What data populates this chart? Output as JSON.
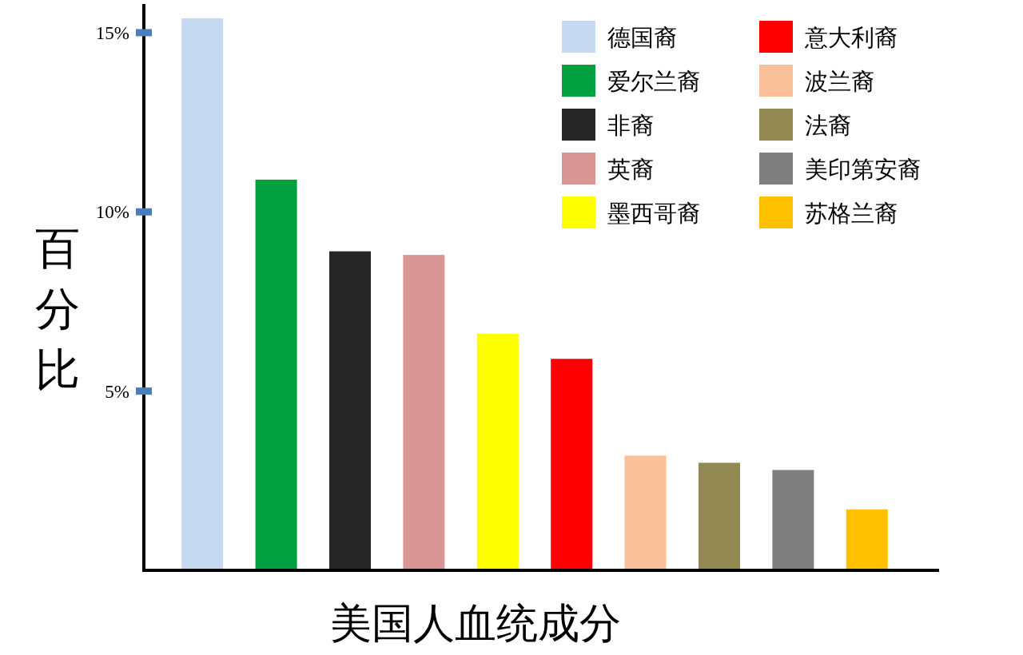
{
  "chart_data": {
    "type": "bar",
    "xlabel": "美国人血统成分",
    "ylabel": "百分比",
    "categories": [
      null,
      null,
      null,
      null,
      null,
      null,
      null,
      null,
      null,
      null
    ],
    "series": [
      {
        "name": "德国裔",
        "color": "#c5d9f0",
        "values": [
          15.4,
          null,
          null,
          null,
          null,
          null,
          null,
          null,
          null,
          null
        ]
      },
      {
        "name": "爱尔兰裔",
        "color": "#00a040",
        "values": [
          null,
          10.9,
          null,
          null,
          null,
          null,
          null,
          null,
          null,
          null
        ]
      },
      {
        "name": "非裔",
        "color": "#262626",
        "values": [
          null,
          null,
          8.9,
          null,
          null,
          null,
          null,
          null,
          null,
          null
        ]
      },
      {
        "name": "英裔",
        "color": "#d99694",
        "values": [
          null,
          null,
          null,
          8.8,
          null,
          null,
          null,
          null,
          null,
          null
        ]
      },
      {
        "name": "墨西哥裔",
        "color": "#ffff00",
        "values": [
          null,
          null,
          null,
          null,
          6.6,
          null,
          null,
          null,
          null,
          null
        ]
      },
      {
        "name": "意大利裔",
        "color": "#ff0000",
        "values": [
          null,
          null,
          null,
          null,
          null,
          5.9,
          null,
          null,
          null,
          null
        ]
      },
      {
        "name": "波兰裔",
        "color": "#fac09a",
        "values": [
          null,
          null,
          null,
          null,
          null,
          null,
          3.2,
          null,
          null,
          null
        ]
      },
      {
        "name": "法裔",
        "color": "#938953",
        "values": [
          null,
          null,
          null,
          null,
          null,
          null,
          null,
          3.0,
          null,
          null
        ]
      },
      {
        "name": "美印第安裔",
        "color": "#7f7f7f",
        "values": [
          null,
          null,
          null,
          null,
          null,
          null,
          null,
          null,
          2.8,
          null
        ]
      },
      {
        "name": "苏格兰裔",
        "color": "#ffc000",
        "values": [
          null,
          null,
          null,
          null,
          null,
          null,
          null,
          null,
          null,
          1.7
        ]
      }
    ],
    "ylim": [
      0,
      15.8
    ],
    "yticks": [
      {
        "value": 5,
        "label": "5%"
      },
      {
        "value": 10,
        "label": "10%"
      },
      {
        "value": 15,
        "label": "15%"
      }
    ],
    "tick_labels": "y",
    "legend": "top right",
    "grid": false
  }
}
